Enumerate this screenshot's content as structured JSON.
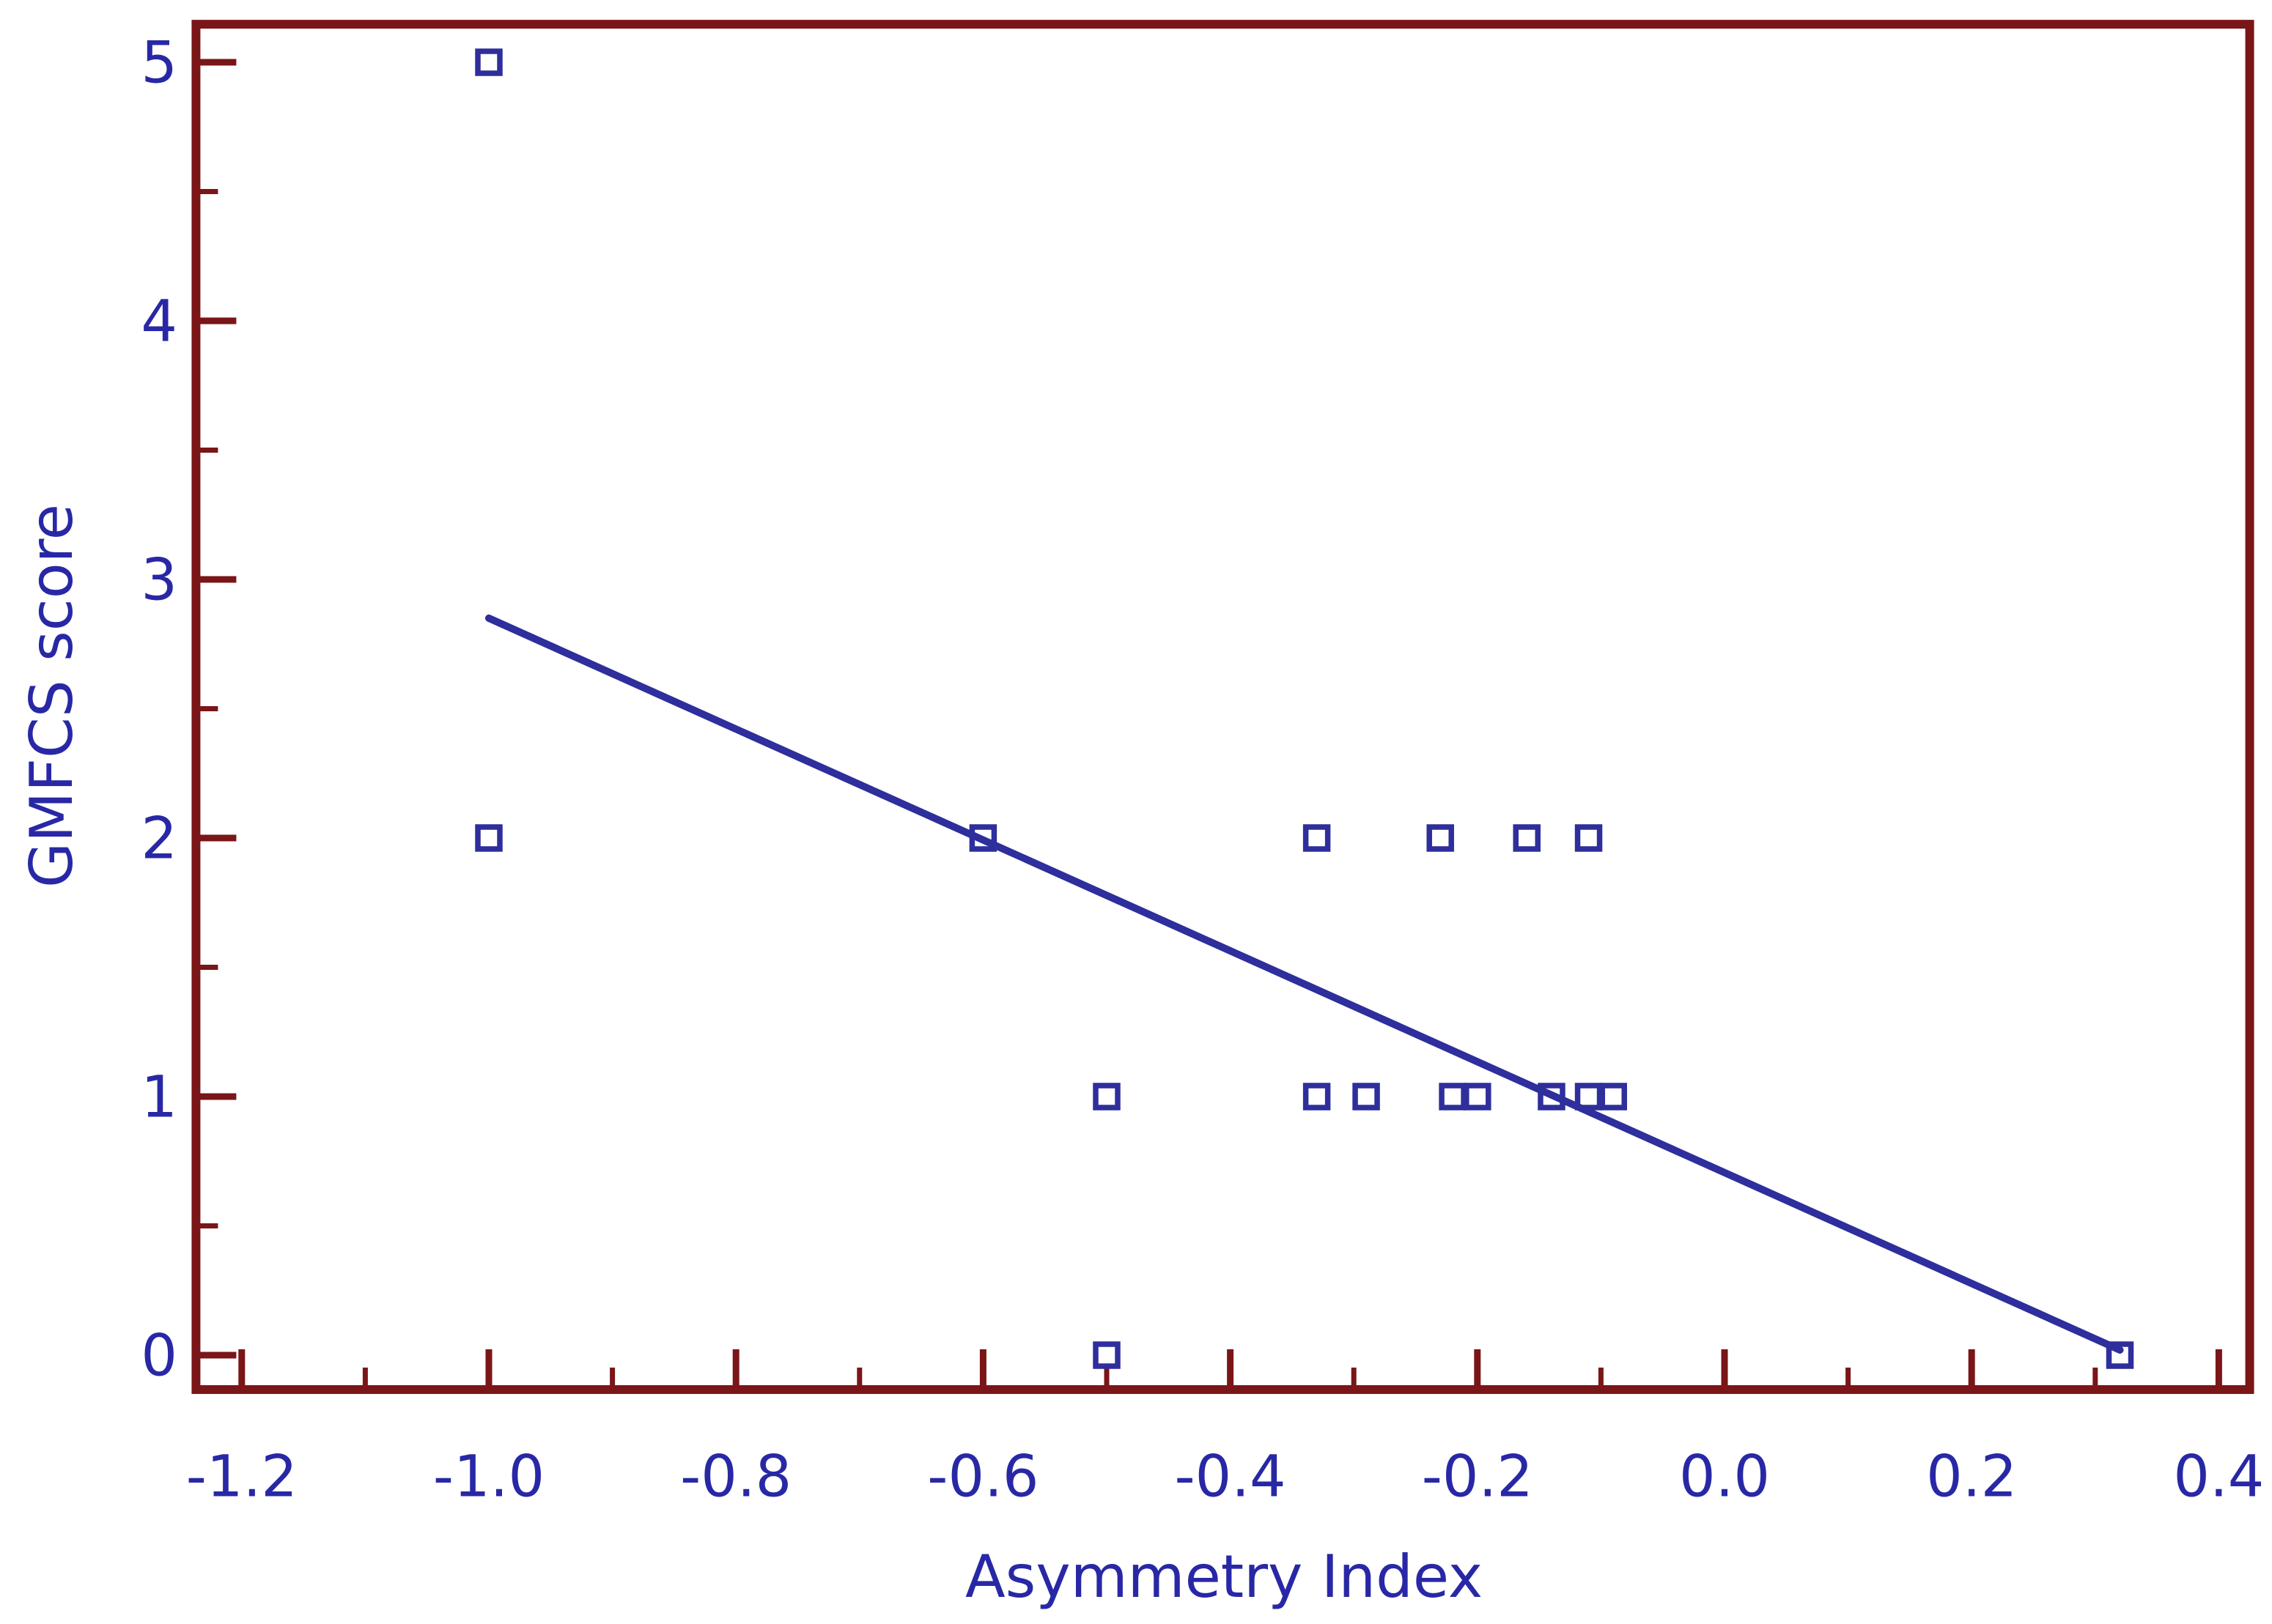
{
  "chart_data": {
    "type": "scatter",
    "title": "",
    "xlabel": "Asymmetry Index",
    "ylabel": "GMFCS score",
    "xlim": [
      -1.237,
      0.425
    ],
    "ylim": [
      -0.133,
      5.147
    ],
    "grid": false,
    "legend_position": "none",
    "marker": "open-square",
    "x_major_ticks": [
      -1.2,
      -1.0,
      -0.8,
      -0.6,
      -0.4,
      -0.2,
      0.0,
      0.2,
      0.4
    ],
    "x_tick_labels": [
      "-1.2",
      "-1.0",
      "-0.8",
      "-0.6",
      "-0.4",
      "-0.2",
      "0.0",
      "0.2",
      "0.4"
    ],
    "x_minor_ticks": [
      -1.1,
      -0.9,
      -0.7,
      -0.5,
      -0.3,
      -0.1,
      0.1,
      0.3
    ],
    "y_major_ticks": [
      0,
      1,
      2,
      3,
      4,
      5
    ],
    "y_tick_labels": [
      "0",
      "1",
      "2",
      "3",
      "4",
      "5"
    ],
    "y_minor_ticks": [
      0.5,
      1.5,
      2.5,
      3.5,
      4.5
    ],
    "points": [
      {
        "x": -1.0,
        "y": 5
      },
      {
        "x": -1.0,
        "y": 2
      },
      {
        "x": -0.6,
        "y": 2
      },
      {
        "x": -0.33,
        "y": 2
      },
      {
        "x": -0.23,
        "y": 2
      },
      {
        "x": -0.16,
        "y": 2
      },
      {
        "x": -0.11,
        "y": 2
      },
      {
        "x": -0.5,
        "y": 1
      },
      {
        "x": -0.33,
        "y": 1
      },
      {
        "x": -0.29,
        "y": 1
      },
      {
        "x": -0.22,
        "y": 1
      },
      {
        "x": -0.2,
        "y": 1
      },
      {
        "x": -0.14,
        "y": 1
      },
      {
        "x": -0.11,
        "y": 1
      },
      {
        "x": -0.09,
        "y": 1
      },
      {
        "x": -0.5,
        "y": 0
      },
      {
        "x": 0.32,
        "y": 0
      }
    ],
    "regression_line": {
      "x1": -1.0,
      "y1": 2.85,
      "x2": 0.32,
      "y2": 0.02
    },
    "colors": {
      "axis": "#7A1518",
      "data": "#2E2E9C",
      "text": "#2828A6",
      "background": "#FFFFFF"
    }
  }
}
